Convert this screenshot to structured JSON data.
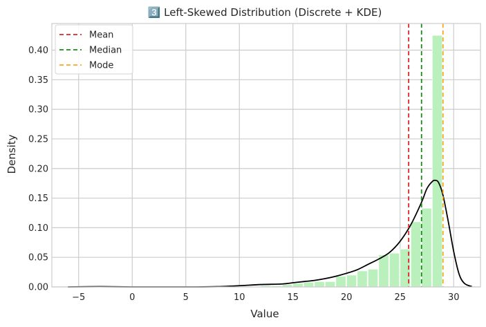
{
  "chart_data": {
    "type": "bar",
    "title": "3️⃣ Left-Skewed Distribution (Discrete + KDE)",
    "xlabel": "Value",
    "ylabel": "Density",
    "xlim": [
      -7.5,
      32.5
    ],
    "ylim": [
      0,
      0.445
    ],
    "xticks": [
      -5,
      0,
      5,
      10,
      15,
      20,
      25,
      30
    ],
    "yticks": [
      0.0,
      0.05,
      0.1,
      0.15,
      0.2,
      0.25,
      0.3,
      0.35,
      0.4
    ],
    "ytick_labels": [
      "0.00",
      "0.05",
      "0.10",
      "0.15",
      "0.20",
      "0.25",
      "0.30",
      "0.35",
      "0.40"
    ],
    "grid": true,
    "legend_position": "top-left",
    "bar_color": "#b9f0bb",
    "histogram": {
      "bin_starts": [
        -6,
        -5,
        -4,
        -3,
        -2,
        -1,
        0,
        1,
        2,
        3,
        4,
        5,
        6,
        7,
        8,
        9,
        10,
        11,
        12,
        13,
        14,
        15,
        16,
        17,
        18,
        19,
        20,
        21,
        22,
        23,
        24,
        25,
        26,
        27,
        28
      ],
      "bin_width": 1,
      "values": [
        0.001,
        0.001,
        0.001,
        0.002,
        0.001,
        0.0,
        0.0,
        0.0,
        0.0,
        0.0,
        0.0,
        0.0,
        0.0,
        0.0,
        0.0,
        0.0,
        0.001,
        0.001,
        0.002,
        0.002,
        0.004,
        0.006,
        0.008,
        0.009,
        0.009,
        0.018,
        0.02,
        0.027,
        0.03,
        0.054,
        0.057,
        0.064,
        0.11,
        0.133,
        0.425
      ]
    },
    "kde": {
      "color": "#000000",
      "x": [
        -6,
        -3,
        0,
        3,
        6,
        8,
        10,
        12,
        14,
        15,
        16,
        17,
        18,
        19,
        20,
        21,
        22,
        23,
        24,
        25,
        26,
        27,
        27.5,
        28,
        28.3,
        28.6,
        29,
        29.5,
        30,
        30.5,
        31,
        31.7
      ],
      "y": [
        0.0,
        0.0005,
        0.0,
        0.0,
        0.0,
        0.0005,
        0.002,
        0.004,
        0.005,
        0.007,
        0.009,
        0.011,
        0.014,
        0.018,
        0.023,
        0.029,
        0.038,
        0.047,
        0.058,
        0.077,
        0.105,
        0.143,
        0.166,
        0.178,
        0.18,
        0.176,
        0.155,
        0.11,
        0.06,
        0.022,
        0.006,
        0.0005
      ]
    },
    "reference_lines": [
      {
        "name": "Mean",
        "x": 25.8,
        "color": "#d62728"
      },
      {
        "name": "Median",
        "x": 27.0,
        "color": "#1a8a1a"
      },
      {
        "name": "Mode",
        "x": 29.0,
        "color": "#f5a623"
      }
    ]
  }
}
